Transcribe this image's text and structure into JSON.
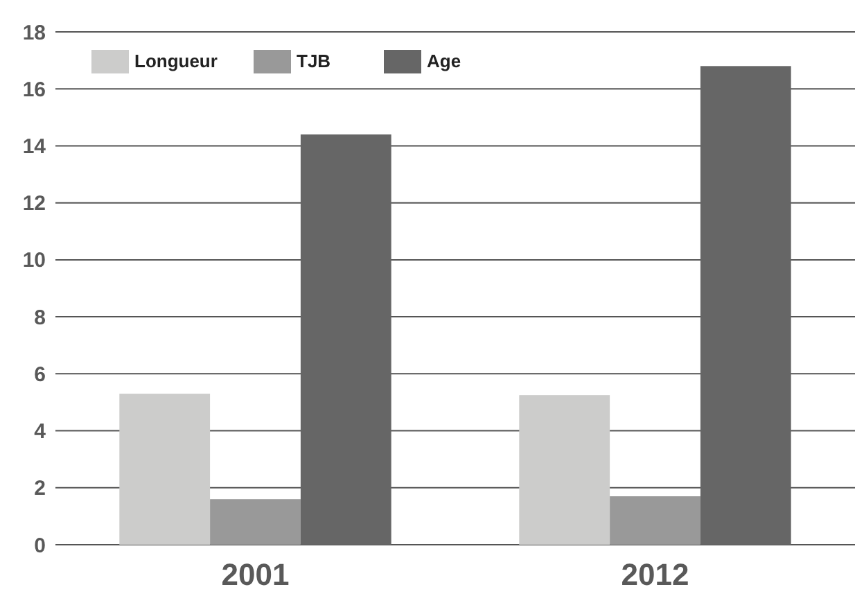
{
  "chart_data": {
    "type": "bar",
    "categories": [
      "2001",
      "2012"
    ],
    "series": [
      {
        "name": "Longueur",
        "color": "#cccccb",
        "values": [
          5.3,
          5.25
        ]
      },
      {
        "name": "TJB",
        "color": "#999999",
        "values": [
          1.6,
          1.7
        ]
      },
      {
        "name": "Age",
        "color": "#666666",
        "values": [
          14.4,
          16.8
        ]
      }
    ],
    "ylim": [
      0,
      18
    ],
    "yticks": [
      0,
      2,
      4,
      6,
      8,
      10,
      12,
      14,
      16,
      18
    ],
    "grid": "y",
    "legend": "top left"
  }
}
